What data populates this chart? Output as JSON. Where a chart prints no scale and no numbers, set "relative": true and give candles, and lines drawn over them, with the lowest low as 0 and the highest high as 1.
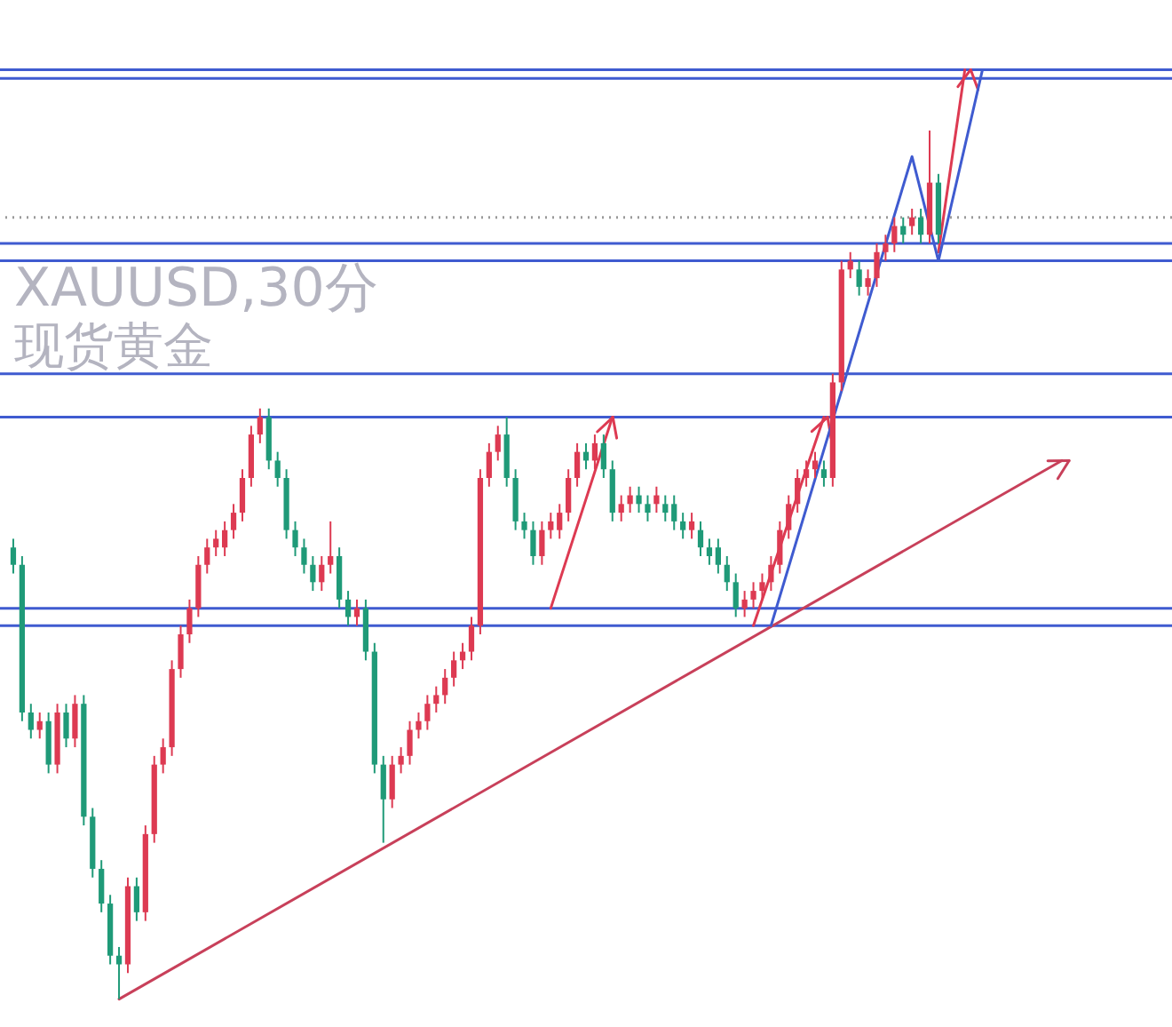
{
  "chart_data": {
    "type": "candlestick",
    "title": "XAUUSD,30分",
    "subtitle": "现货黄金",
    "relative": true,
    "categories": [
      null,
      null,
      null,
      null,
      null,
      null,
      null,
      null,
      null,
      null,
      null,
      null,
      null,
      null,
      null,
      null,
      null,
      null,
      null,
      null,
      null,
      null,
      null,
      null,
      null,
      null,
      null,
      null,
      null,
      null,
      null,
      null,
      null,
      null,
      null,
      null,
      null,
      null,
      null,
      null,
      null,
      null,
      null,
      null,
      null,
      null,
      null,
      null,
      null,
      null,
      null,
      null,
      null,
      null,
      null,
      null,
      null,
      null,
      null,
      null,
      null,
      null,
      null,
      null,
      null,
      null,
      null,
      null,
      null,
      null,
      null,
      null,
      null,
      null,
      null,
      null,
      null,
      null,
      null,
      null,
      null,
      null,
      null,
      null,
      null,
      null,
      null,
      null,
      null,
      null,
      null,
      null,
      null,
      null,
      null,
      null,
      null,
      null,
      null,
      null,
      null,
      null,
      null,
      null,
      null,
      null,
      null,
      null,
      null,
      null,
      null,
      null,
      null,
      null,
      null,
      null,
      null,
      null,
      null,
      null,
      null,
      null,
      null,
      null,
      null,
      null,
      null,
      null,
      null,
      null,
      null
    ],
    "colors": [
      "#1f9a78",
      "#1f9a78",
      "#1f9a78",
      "#dd3a52",
      "#1f9a78",
      "#dd3a52",
      "#1f9a78",
      "#dd3a52",
      "#1f9a78",
      "#1f9a78",
      "#1f9a78",
      "#1f9a78",
      "#1f9a78",
      "#dd3a52",
      "#1f9a78",
      "#dd3a52",
      "#dd3a52",
      "#dd3a52",
      "#dd3a52",
      "#dd3a52",
      "#dd3a52",
      "#dd3a52",
      "#dd3a52",
      "#dd3a52",
      "#dd3a52",
      "#dd3a52",
      "#dd3a52",
      "#dd3a52",
      "#dd3a52",
      "#1f9a78",
      "#1f9a78",
      "#1f9a78",
      "#1f9a78",
      "#1f9a78",
      "#1f9a78",
      "#dd3a52",
      "#dd3a52",
      "#1f9a78",
      "#1f9a78",
      "#dd3a52",
      "#1f9a78",
      "#1f9a78",
      "#1f9a78",
      "#dd3a52",
      "#dd3a52",
      "#dd3a52",
      "#dd3a52",
      "#dd3a52",
      "#dd3a52",
      "#dd3a52",
      "#dd3a52",
      "#dd3a52",
      "#dd3a52",
      "#dd3a52",
      "#dd3a52",
      "#dd3a52",
      "#1f9a78",
      "#1f9a78",
      "#1f9a78",
      "#1f9a78",
      "#dd3a52",
      "#dd3a52",
      "#dd3a52",
      "#dd3a52",
      "#dd3a52",
      "#1f9a78",
      "#dd3a52",
      "#1f9a78",
      "#1f9a78",
      "#dd3a52",
      "#dd3a52",
      "#1f9a78",
      "#1f9a78",
      "#dd3a52",
      "#1f9a78",
      "#1f9a78",
      "#1f9a78",
      "#dd3a52",
      "#1f9a78",
      "#1f9a78",
      "#1f9a78",
      "#1f9a78",
      "#1f9a78",
      "#dd3a52",
      "#dd3a52",
      "#dd3a52",
      "#dd3a52",
      "#dd3a52",
      "#dd3a52",
      "#dd3a52",
      "#dd3a52",
      "#dd3a52",
      "#1f9a78",
      "#dd3a52",
      "#dd3a52",
      "#dd3a52",
      "#1f9a78",
      "#dd3a52",
      "#dd3a52",
      "#dd3a52",
      "#dd3a52",
      "#1f9a78",
      "#dd3a52",
      "#1f9a78",
      "#dd3a52",
      "#1f9a78",
      null,
      null,
      null,
      null,
      null,
      null,
      null,
      null,
      null,
      null,
      null,
      null,
      null,
      null,
      null,
      null,
      null,
      null,
      null,
      null,
      null,
      null,
      null,
      null,
      null
    ],
    "ohlc": [
      [
        0.52,
        0.53,
        0.49,
        0.5
      ],
      [
        0.5,
        0.51,
        0.32,
        0.33
      ],
      [
        0.33,
        0.34,
        0.3,
        0.31
      ],
      [
        0.31,
        0.33,
        0.3,
        0.32
      ],
      [
        0.32,
        0.33,
        0.26,
        0.27
      ],
      [
        0.27,
        0.34,
        0.26,
        0.33
      ],
      [
        0.33,
        0.34,
        0.29,
        0.3
      ],
      [
        0.3,
        0.35,
        0.29,
        0.34
      ],
      [
        0.34,
        0.35,
        0.2,
        0.21
      ],
      [
        0.21,
        0.22,
        0.14,
        0.15
      ],
      [
        0.15,
        0.16,
        0.1,
        0.11
      ],
      [
        0.11,
        0.12,
        0.04,
        0.05
      ],
      [
        0.05,
        0.06,
        0.0,
        0.04
      ],
      [
        0.04,
        0.14,
        0.03,
        0.13
      ],
      [
        0.13,
        0.14,
        0.09,
        0.1
      ],
      [
        0.1,
        0.2,
        0.09,
        0.19
      ],
      [
        0.19,
        0.28,
        0.18,
        0.27
      ],
      [
        0.27,
        0.3,
        0.26,
        0.29
      ],
      [
        0.29,
        0.39,
        0.28,
        0.38
      ],
      [
        0.38,
        0.43,
        0.37,
        0.42
      ],
      [
        0.42,
        0.46,
        0.41,
        0.45
      ],
      [
        0.45,
        0.51,
        0.44,
        0.5
      ],
      [
        0.5,
        0.53,
        0.49,
        0.52
      ],
      [
        0.52,
        0.54,
        0.51,
        0.53
      ],
      [
        0.52,
        0.55,
        0.51,
        0.54
      ],
      [
        0.54,
        0.57,
        0.53,
        0.56
      ],
      [
        0.56,
        0.61,
        0.55,
        0.6
      ],
      [
        0.6,
        0.66,
        0.59,
        0.65
      ],
      [
        0.65,
        0.68,
        0.64,
        0.67
      ],
      [
        0.67,
        0.68,
        0.61,
        0.62
      ],
      [
        0.62,
        0.63,
        0.59,
        0.6
      ],
      [
        0.6,
        0.61,
        0.53,
        0.54
      ],
      [
        0.54,
        0.55,
        0.51,
        0.52
      ],
      [
        0.52,
        0.53,
        0.49,
        0.5
      ],
      [
        0.5,
        0.51,
        0.47,
        0.48
      ],
      [
        0.48,
        0.51,
        0.47,
        0.5
      ],
      [
        0.5,
        0.55,
        0.49,
        0.51
      ],
      [
        0.51,
        0.52,
        0.45,
        0.46
      ],
      [
        0.46,
        0.47,
        0.43,
        0.44
      ],
      [
        0.44,
        0.46,
        0.43,
        0.45
      ],
      [
        0.45,
        0.46,
        0.39,
        0.4
      ],
      [
        0.4,
        0.41,
        0.26,
        0.27
      ],
      [
        0.27,
        0.28,
        0.18,
        0.23
      ],
      [
        0.23,
        0.28,
        0.22,
        0.27
      ],
      [
        0.27,
        0.29,
        0.26,
        0.28
      ],
      [
        0.28,
        0.32,
        0.27,
        0.31
      ],
      [
        0.31,
        0.33,
        0.3,
        0.32
      ],
      [
        0.32,
        0.35,
        0.31,
        0.34
      ],
      [
        0.34,
        0.36,
        0.33,
        0.35
      ],
      [
        0.35,
        0.38,
        0.34,
        0.37
      ],
      [
        0.37,
        0.4,
        0.36,
        0.39
      ],
      [
        0.39,
        0.41,
        0.38,
        0.4
      ],
      [
        0.4,
        0.44,
        0.39,
        0.43
      ],
      [
        0.43,
        0.61,
        0.42,
        0.6
      ],
      [
        0.6,
        0.64,
        0.59,
        0.63
      ],
      [
        0.63,
        0.66,
        0.62,
        0.65
      ],
      [
        0.65,
        0.67,
        0.59,
        0.6
      ],
      [
        0.6,
        0.61,
        0.54,
        0.55
      ],
      [
        0.55,
        0.56,
        0.53,
        0.54
      ],
      [
        0.54,
        0.55,
        0.5,
        0.51
      ],
      [
        0.51,
        0.55,
        0.5,
        0.54
      ],
      [
        0.54,
        0.56,
        0.53,
        0.55
      ],
      [
        0.54,
        0.57,
        0.53,
        0.56
      ],
      [
        0.56,
        0.61,
        0.55,
        0.6
      ],
      [
        0.6,
        0.64,
        0.59,
        0.63
      ],
      [
        0.63,
        0.64,
        0.61,
        0.62
      ],
      [
        0.62,
        0.65,
        0.61,
        0.64
      ],
      [
        0.64,
        0.65,
        0.6,
        0.61
      ],
      [
        0.61,
        0.62,
        0.55,
        0.56
      ],
      [
        0.56,
        0.58,
        0.55,
        0.57
      ],
      [
        0.57,
        0.59,
        0.56,
        0.58
      ],
      [
        0.58,
        0.59,
        0.56,
        0.57
      ],
      [
        0.57,
        0.58,
        0.55,
        0.56
      ],
      [
        0.57,
        0.59,
        0.56,
        0.58
      ],
      [
        0.57,
        0.58,
        0.55,
        0.56
      ],
      [
        0.57,
        0.58,
        0.54,
        0.55
      ],
      [
        0.55,
        0.56,
        0.53,
        0.54
      ],
      [
        0.54,
        0.56,
        0.53,
        0.55
      ],
      [
        0.54,
        0.55,
        0.51,
        0.52
      ],
      [
        0.52,
        0.53,
        0.5,
        0.51
      ],
      [
        0.52,
        0.53,
        0.49,
        0.5
      ],
      [
        0.5,
        0.51,
        0.47,
        0.48
      ],
      [
        0.48,
        0.49,
        0.44,
        0.45
      ],
      [
        0.45,
        0.47,
        0.44,
        0.46
      ],
      [
        0.46,
        0.48,
        0.45,
        0.47
      ],
      [
        0.47,
        0.49,
        0.46,
        0.48
      ],
      [
        0.48,
        0.51,
        0.47,
        0.5
      ],
      [
        0.5,
        0.55,
        0.49,
        0.54
      ],
      [
        0.54,
        0.58,
        0.53,
        0.57
      ],
      [
        0.57,
        0.61,
        0.56,
        0.6
      ],
      [
        0.6,
        0.62,
        0.59,
        0.61
      ],
      [
        0.61,
        0.63,
        0.6,
        0.62
      ],
      [
        0.61,
        0.62,
        0.59,
        0.6
      ],
      [
        0.6,
        0.72,
        0.59,
        0.71
      ],
      [
        0.71,
        0.85,
        0.7,
        0.84
      ],
      [
        0.84,
        0.86,
        0.83,
        0.85
      ],
      [
        0.84,
        0.85,
        0.81,
        0.82
      ],
      [
        0.82,
        0.84,
        0.81,
        0.83
      ],
      [
        0.83,
        0.87,
        0.82,
        0.86
      ],
      [
        0.86,
        0.88,
        0.85,
        0.87
      ],
      [
        0.87,
        0.9,
        0.86,
        0.89
      ],
      [
        0.89,
        0.9,
        0.87,
        0.88
      ],
      [
        0.89,
        0.91,
        0.88,
        0.9
      ],
      [
        0.9,
        0.91,
        0.87,
        0.88
      ],
      [
        0.88,
        1.0,
        0.87,
        0.94
      ],
      [
        0.94,
        0.95,
        0.87,
        0.88
      ],
      null,
      null,
      null,
      null,
      null,
      null,
      null,
      null,
      null,
      null,
      null,
      null,
      null,
      null,
      null,
      null,
      null,
      null,
      null,
      null,
      null,
      null,
      null,
      null,
      null
    ],
    "series": [
      {
        "type": "line",
        "color": "#c8405a",
        "values": [
          null,
          null,
          null,
          null,
          null,
          null,
          null,
          null,
          null,
          null,
          null,
          null,
          0.0,
          null,
          null,
          null,
          null,
          null,
          null,
          null,
          null,
          null,
          null,
          null,
          null,
          null,
          null,
          null,
          null,
          null,
          null,
          null,
          null,
          null,
          null,
          null,
          null,
          null,
          null,
          null,
          null,
          null,
          null,
          null,
          null,
          null,
          null,
          null,
          null,
          null,
          null,
          null,
          null,
          null,
          null,
          null,
          null,
          null,
          null,
          null,
          null,
          null,
          null,
          null,
          null,
          null,
          null,
          null,
          null,
          null,
          null,
          null,
          null,
          null,
          null,
          null,
          null,
          null,
          null,
          null,
          null,
          null,
          null,
          null,
          null,
          null,
          null,
          null,
          null,
          null,
          null,
          null,
          null,
          null,
          null,
          null,
          null,
          null,
          null,
          null,
          null,
          null,
          null,
          null,
          null,
          null,
          null,
          null,
          null,
          null,
          null,
          null,
          null,
          null,
          null,
          null,
          null,
          null,
          null,
          0.62,
          null,
          null,
          null,
          null,
          null,
          null,
          null,
          null,
          null,
          null,
          null
        ]
      },
      {
        "type": "line",
        "color": "#dd3a52",
        "values": [
          null,
          null,
          null,
          null,
          null,
          null,
          null,
          null,
          null,
          null,
          null,
          null,
          null,
          null,
          null,
          null,
          null,
          null,
          null,
          null,
          null,
          null,
          null,
          null,
          null,
          null,
          null,
          null,
          null,
          null,
          null,
          null,
          null,
          null,
          null,
          null,
          null,
          null,
          null,
          null,
          null,
          null,
          null,
          null,
          null,
          null,
          null,
          null,
          null,
          null,
          null,
          null,
          null,
          null,
          null,
          null,
          null,
          null,
          null,
          null,
          null,
          0.45,
          null,
          null,
          null,
          null,
          null,
          null,
          0.67,
          null,
          null,
          null,
          null,
          null,
          null,
          null,
          null,
          null,
          null,
          null,
          null,
          null,
          null,
          null,
          null,
          null,
          null,
          null,
          null,
          null,
          null,
          null,
          null,
          null,
          null,
          null,
          null,
          null,
          null,
          null,
          null,
          null,
          null,
          null,
          null,
          null,
          null,
          null,
          null,
          null,
          null,
          null,
          null,
          null,
          null,
          null,
          null,
          null,
          null,
          null,
          null,
          null,
          null,
          null,
          null,
          null,
          null,
          null,
          null,
          null,
          null
        ]
      },
      {
        "type": "line",
        "color": "#dd3a52",
        "values": [
          null,
          null,
          null,
          null,
          null,
          null,
          null,
          null,
          null,
          null,
          null,
          null,
          null,
          null,
          null,
          null,
          null,
          null,
          null,
          null,
          null,
          null,
          null,
          null,
          null,
          null,
          null,
          null,
          null,
          null,
          null,
          null,
          null,
          null,
          null,
          null,
          null,
          null,
          null,
          null,
          null,
          null,
          null,
          null,
          null,
          null,
          null,
          null,
          null,
          null,
          null,
          null,
          null,
          null,
          null,
          null,
          null,
          null,
          null,
          null,
          null,
          null,
          null,
          null,
          null,
          null,
          null,
          null,
          null,
          null,
          null,
          null,
          null,
          null,
          null,
          null,
          null,
          null,
          null,
          null,
          null,
          null,
          null,
          null,
          0.43,
          null,
          null,
          null,
          null,
          null,
          null,
          null,
          0.67,
          null,
          null,
          null,
          null,
          null,
          null,
          null,
          null,
          null,
          null,
          null,
          null,
          null,
          null,
          null,
          null,
          null,
          null,
          null,
          null,
          null,
          null,
          null,
          null,
          null,
          null,
          null,
          null,
          null,
          null,
          null,
          null,
          null,
          null,
          null,
          null,
          null,
          null
        ]
      },
      {
        "type": "line",
        "color": "#dd3a52",
        "values": [
          null,
          null,
          null,
          null,
          null,
          null,
          null,
          null,
          null,
          null,
          null,
          null,
          null,
          null,
          null,
          null,
          null,
          null,
          null,
          null,
          null,
          null,
          null,
          null,
          null,
          null,
          null,
          null,
          null,
          null,
          null,
          null,
          null,
          null,
          null,
          null,
          null,
          null,
          null,
          null,
          null,
          null,
          null,
          null,
          null,
          null,
          null,
          null,
          null,
          null,
          null,
          null,
          null,
          null,
          null,
          null,
          null,
          null,
          null,
          null,
          null,
          null,
          null,
          null,
          null,
          null,
          null,
          null,
          null,
          null,
          null,
          null,
          null,
          null,
          null,
          null,
          null,
          null,
          null,
          null,
          null,
          null,
          null,
          null,
          null,
          null,
          null,
          null,
          null,
          null,
          null,
          null,
          null,
          null,
          null,
          null,
          null,
          null,
          null,
          null,
          null,
          null,
          null,
          null,
          null,
          0.86,
          null,
          null,
          1.07,
          null,
          null,
          null,
          null,
          null,
          null,
          null,
          null,
          null,
          null,
          null,
          null,
          null,
          null,
          null,
          null,
          null,
          null,
          null,
          null,
          null,
          null
        ]
      },
      {
        "type": "line",
        "color": "#3f5bd0",
        "values": [
          null,
          null,
          null,
          null,
          null,
          null,
          null,
          null,
          null,
          null,
          null,
          null,
          null,
          null,
          null,
          null,
          null,
          null,
          null,
          null,
          null,
          null,
          null,
          null,
          null,
          null,
          null,
          null,
          null,
          null,
          null,
          null,
          null,
          null,
          null,
          null,
          null,
          null,
          null,
          null,
          null,
          null,
          null,
          null,
          null,
          null,
          null,
          null,
          null,
          null,
          null,
          null,
          null,
          null,
          null,
          null,
          null,
          null,
          null,
          null,
          null,
          null,
          null,
          null,
          null,
          null,
          null,
          null,
          null,
          null,
          null,
          null,
          null,
          null,
          null,
          null,
          null,
          null,
          null,
          null,
          null,
          null,
          null,
          null,
          null,
          null,
          0.43,
          null,
          null,
          null,
          null,
          null,
          null,
          null,
          null,
          null,
          null,
          null,
          null,
          null,
          null,
          null,
          0.97,
          null,
          null,
          0.85,
          null,
          null,
          null,
          null,
          1.07,
          null,
          null,
          null,
          null,
          null,
          null,
          null,
          null,
          null,
          null,
          null,
          null,
          null,
          null,
          null,
          null,
          null,
          null,
          null,
          null
        ]
      }
    ],
    "ref_lines": [
      {
        "axis": "y",
        "value": 1.07,
        "color": "#3f5bd0"
      },
      {
        "axis": "y",
        "value": 1.06,
        "color": "#3f5bd0"
      },
      {
        "axis": "y",
        "value": 0.9,
        "color": "#9a9a9a",
        "line_style": "dotted"
      },
      {
        "axis": "y",
        "value": 0.87,
        "color": "#3f5bd0"
      },
      {
        "axis": "y",
        "value": 0.85,
        "color": "#3f5bd0"
      },
      {
        "axis": "y",
        "value": 0.72,
        "color": "#3f5bd0"
      },
      {
        "axis": "y",
        "value": 0.67,
        "color": "#3f5bd0"
      },
      {
        "axis": "y",
        "value": 0.45,
        "color": "#3f5bd0"
      },
      {
        "axis": "y",
        "value": 0.43,
        "color": "#3f5bd0"
      }
    ]
  }
}
